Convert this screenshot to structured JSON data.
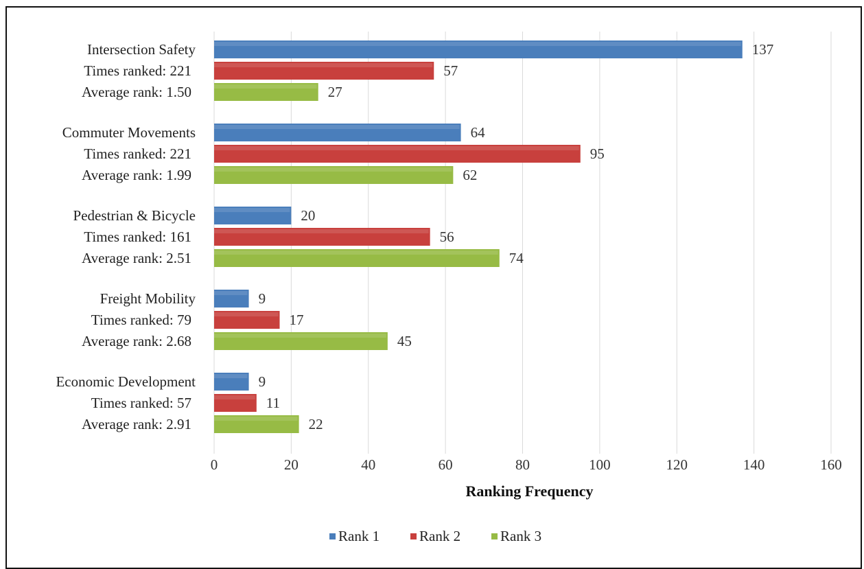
{
  "chart_data": {
    "type": "bar",
    "orientation": "horizontal",
    "categories": [
      [
        "Intersection Safety",
        "Times ranked: 221",
        "Average rank: 1.50"
      ],
      [
        "Commuter Movements",
        "Times ranked: 221",
        "Average rank: 1.99"
      ],
      [
        "Pedestrian & Bicycle",
        "Times ranked: 161",
        "Average rank: 2.51"
      ],
      [
        "Freight Mobility",
        "Times ranked: 79",
        "Average rank: 2.68"
      ],
      [
        "Economic Development",
        "Times ranked: 57",
        "Average rank: 2.91"
      ]
    ],
    "series": [
      {
        "name": "Rank 1",
        "color": "#4a7ebb",
        "values": [
          137,
          64,
          20,
          9,
          9
        ]
      },
      {
        "name": "Rank 2",
        "color": "#c8403d",
        "values": [
          57,
          95,
          56,
          17,
          11
        ]
      },
      {
        "name": "Rank 3",
        "color": "#97bb45",
        "values": [
          27,
          62,
          74,
          45,
          22
        ]
      }
    ],
    "xlabel": "Ranking Frequency",
    "ylabel": "",
    "xlim": [
      0,
      160
    ],
    "xticks": [
      0,
      20,
      40,
      60,
      80,
      100,
      120,
      140,
      160
    ],
    "grid": true,
    "legend_position": "bottom",
    "data_labels": true
  }
}
